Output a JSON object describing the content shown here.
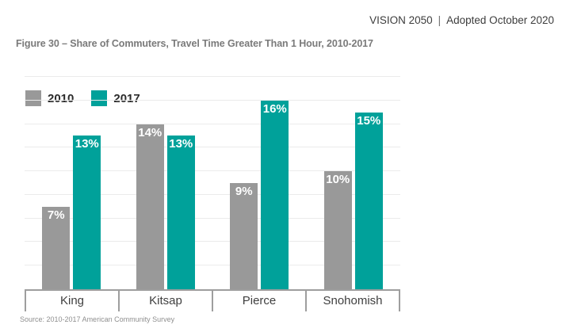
{
  "header": {
    "brand": "VISION 2050",
    "separator": "|",
    "subtitle": "Adopted October 2020"
  },
  "figure": {
    "title": "Figure 30 – Share of Commuters, Travel Time Greater Than 1 Hour, 2010-2017",
    "source": "Source: 2010-2017 American Community Survey"
  },
  "chart_data": {
    "type": "bar",
    "categories": [
      "King",
      "Kitsap",
      "Pierce",
      "Snohomish"
    ],
    "series": [
      {
        "name": "2010",
        "color": "#999999",
        "values": [
          7,
          14,
          9,
          10
        ]
      },
      {
        "name": "2017",
        "color": "#00A19A",
        "values": [
          13,
          13,
          16,
          15
        ]
      }
    ],
    "value_suffix": "%",
    "ylim": [
      0,
      18
    ],
    "gridline_step": 2,
    "grid": "horizontal",
    "legend_position": "top-left-inside",
    "value_labels": "inside-top-white"
  }
}
